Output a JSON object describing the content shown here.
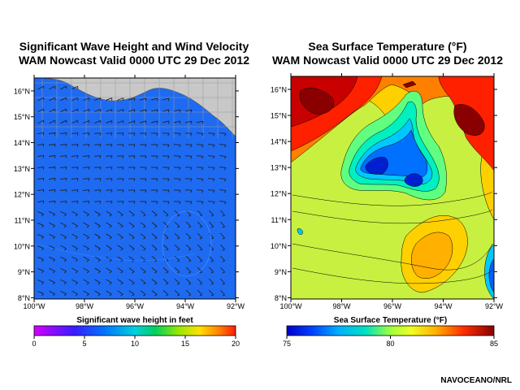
{
  "left": {
    "title_line1": "Significant Wave Height and Wind Velocity",
    "title_line2": "WAM Nowcast Valid 0000 UTC 29 Dec 2012",
    "lat_labels": [
      "16°N",
      "15°N",
      "14°N",
      "13°N",
      "12°N",
      "11°N",
      "10°N",
      "9°N",
      "8°N"
    ],
    "lon_labels": [
      "100°W",
      "98°W",
      "96°W",
      "94°W",
      "92°W"
    ],
    "colorbar_label": "Significant wave height in feet",
    "colorbar_ticks": [
      "0",
      "5",
      "10",
      "15",
      "20"
    ],
    "colors": {
      "sea": "#1e6bf2",
      "land": "#c8c8c8"
    }
  },
  "right": {
    "title_line1": "Sea Surface Temperature (°F)",
    "title_line2": "WAM Nowcast Valid 0000 UTC 29 Dec 2012",
    "lat_labels": [
      "16°N",
      "15°N",
      "14°N",
      "13°N",
      "12°N",
      "11°N",
      "10°N",
      "9°N",
      "8°N"
    ],
    "lon_labels": [
      "100°W",
      "98°W",
      "96°W",
      "94°W",
      "92°W"
    ],
    "colorbar_label": "Sea Surface Temperature (°F)",
    "colorbar_ticks": [
      "75",
      "80",
      "85"
    ]
  },
  "credit": "NAVOCEANO/NRL"
}
